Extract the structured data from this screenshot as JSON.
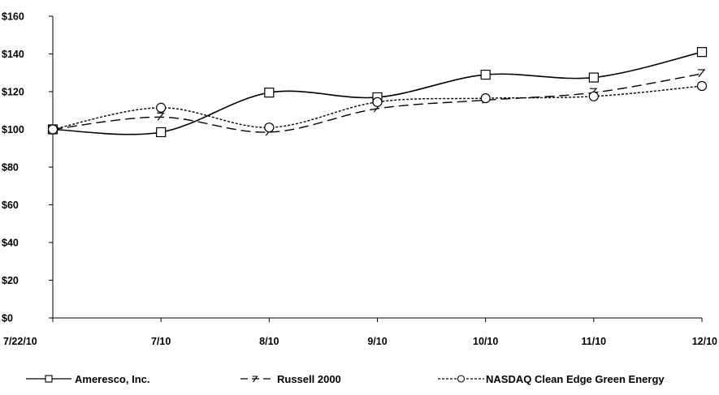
{
  "chart_data": {
    "type": "line",
    "categories": [
      "7/22/10",
      "7/10",
      "8/10",
      "9/10",
      "10/10",
      "11/10",
      "12/10"
    ],
    "series": [
      {
        "name": "Ameresco, Inc.",
        "values": [
          100,
          98.5,
          119.5,
          117,
          129,
          127.5,
          141
        ],
        "marker": "square",
        "dash": "solid"
      },
      {
        "name": "Russell 2000",
        "values": [
          100,
          106.5,
          98.5,
          111,
          115.5,
          119.5,
          129.5
        ],
        "marker": "triangle",
        "dash": "dashed"
      },
      {
        "name": "NASDAQ Clean Edge Green Energy",
        "values": [
          100,
          111.5,
          101,
          114.5,
          116.5,
          117.5,
          123
        ],
        "marker": "circle",
        "dash": "dotted"
      }
    ],
    "y_ticks": [
      "$0",
      "$20",
      "$40",
      "$60",
      "$80",
      "$100",
      "$120",
      "$140",
      "$160"
    ],
    "ylim": [
      0,
      160
    ],
    "grid": false,
    "legend_position": "bottom",
    "colors": {
      "line": "#000000",
      "background": "#ffffff"
    }
  }
}
